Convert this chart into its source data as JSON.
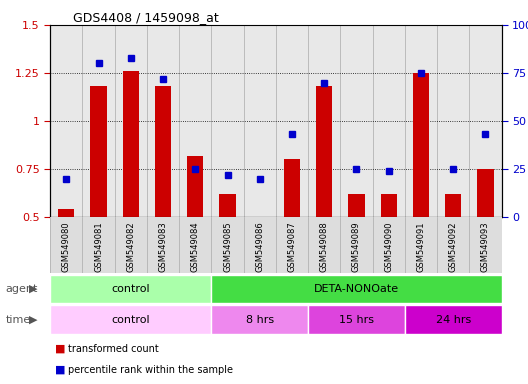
{
  "title": "GDS4408 / 1459098_at",
  "samples": [
    "GSM549080",
    "GSM549081",
    "GSM549082",
    "GSM549083",
    "GSM549084",
    "GSM549085",
    "GSM549086",
    "GSM549087",
    "GSM549088",
    "GSM549089",
    "GSM549090",
    "GSM549091",
    "GSM549092",
    "GSM549093"
  ],
  "transformed_count": [
    0.54,
    1.18,
    1.26,
    1.18,
    0.82,
    0.62,
    0.5,
    0.8,
    1.18,
    0.62,
    0.62,
    1.25,
    0.62,
    0.75
  ],
  "percentile_rank": [
    20,
    80,
    83,
    72,
    25,
    22,
    20,
    43,
    70,
    25,
    24,
    75,
    25,
    43
  ],
  "ylim_left": [
    0.5,
    1.5
  ],
  "ylim_right": [
    0,
    100
  ],
  "yticks_left": [
    0.5,
    0.75,
    1.0,
    1.25,
    1.5
  ],
  "ytick_labels_left": [
    "0.5",
    "0.75",
    "1",
    "1.25",
    "1.5"
  ],
  "yticks_right": [
    0,
    25,
    50,
    75,
    100
  ],
  "ytick_labels_right": [
    "0",
    "25",
    "50",
    "75",
    "100%"
  ],
  "bar_color": "#cc0000",
  "dot_color": "#0000cc",
  "agent_groups": [
    {
      "label": "control",
      "start": 0,
      "end": 5,
      "color": "#aaffaa"
    },
    {
      "label": "DETA-NONOate",
      "start": 5,
      "end": 14,
      "color": "#44dd44"
    }
  ],
  "time_groups": [
    {
      "label": "control",
      "start": 0,
      "end": 5,
      "color": "#ffccff"
    },
    {
      "label": "8 hrs",
      "start": 5,
      "end": 8,
      "color": "#ee88ee"
    },
    {
      "label": "15 hrs",
      "start": 8,
      "end": 11,
      "color": "#dd44dd"
    },
    {
      "label": "24 hrs",
      "start": 11,
      "end": 14,
      "color": "#cc00cc"
    }
  ],
  "legend_bar_label": "transformed count",
  "legend_dot_label": "percentile rank within the sample",
  "agent_label": "agent",
  "time_label": "time",
  "bar_width": 0.5,
  "bg_color": "#ffffff",
  "tick_label_color_left": "#cc0000",
  "tick_label_color_right": "#0000cc",
  "plot_bg_color": "#e8e8e8",
  "grid_line_color": "#000000",
  "spine_color": "#000000"
}
